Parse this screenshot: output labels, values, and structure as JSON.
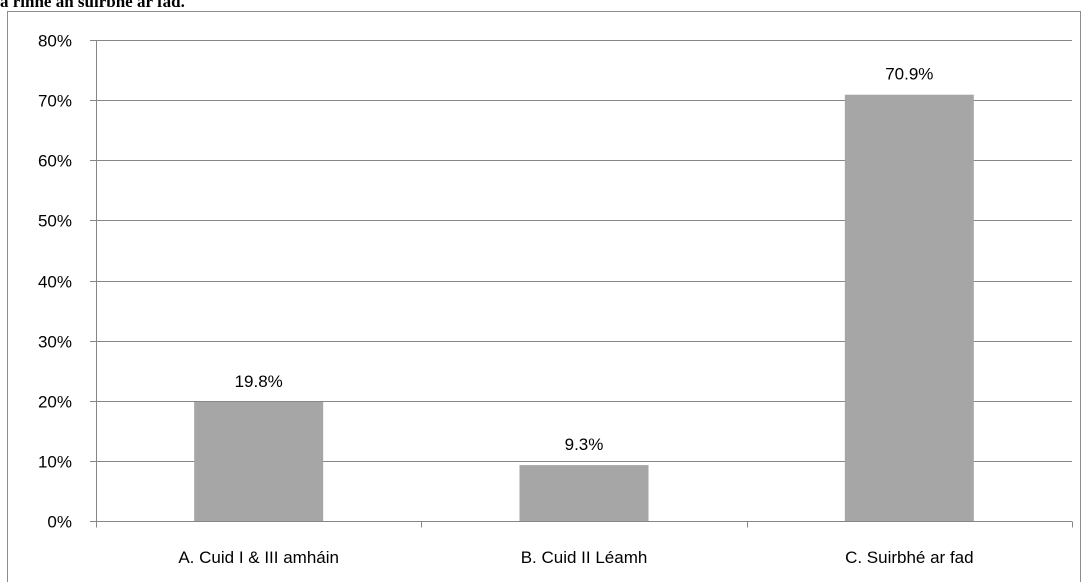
{
  "page": {
    "heading": "a rinne an suirbhé ar fad."
  },
  "chart_data": {
    "type": "bar",
    "title": "",
    "xlabel": "",
    "ylabel": "",
    "categories": [
      "A. Cuid I & III amháin",
      "B. Cuid II Léamh",
      "C. Suirbhé ar fad"
    ],
    "values": [
      19.8,
      9.3,
      70.9
    ],
    "data_labels": [
      "19.8%",
      "9.3%",
      "70.9%"
    ],
    "ylim": [
      0,
      80
    ],
    "y_ticks": [
      0,
      10,
      20,
      30,
      40,
      50,
      60,
      70,
      80
    ],
    "y_tick_labels": [
      "0%",
      "10%",
      "20%",
      "30%",
      "40%",
      "50%",
      "60%",
      "70%",
      "80%"
    ],
    "grid": true,
    "legend": "none",
    "colors": {
      "bar": "#a6a6a6",
      "grid": "#868686",
      "axis": "#868686"
    }
  }
}
